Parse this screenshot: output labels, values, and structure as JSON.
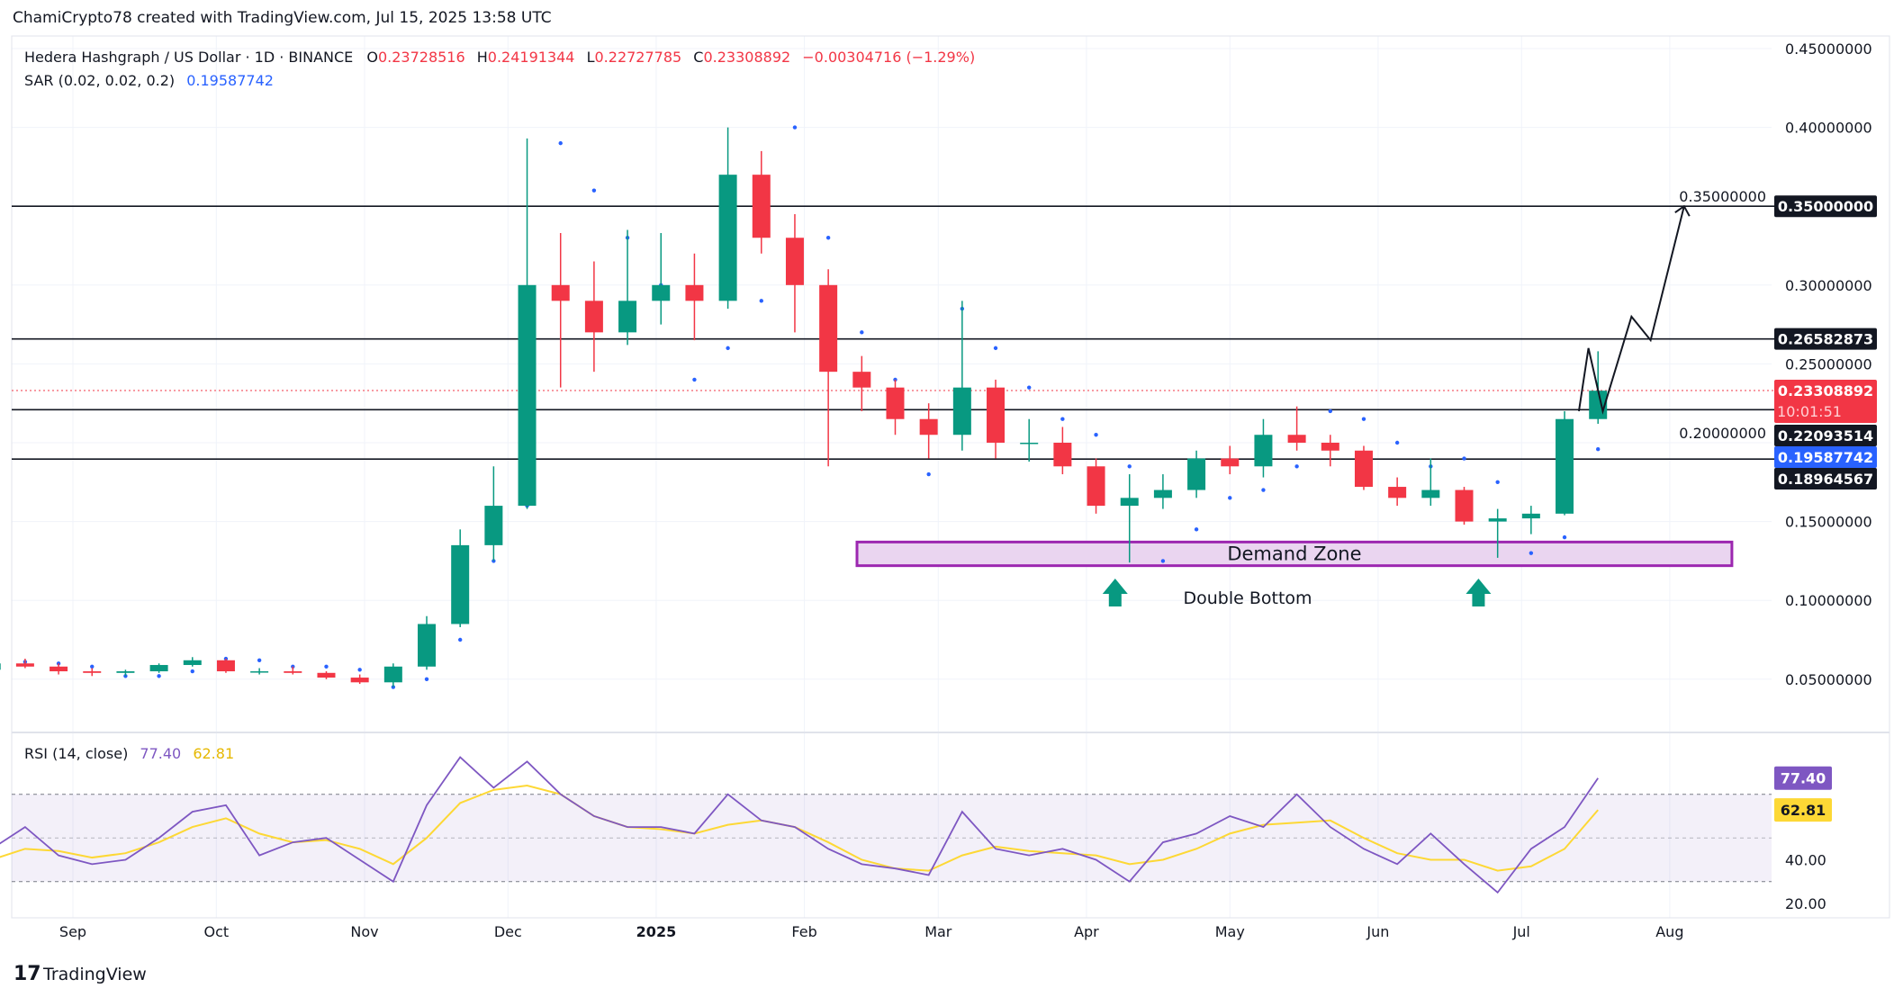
{
  "header": {
    "attribution": "ChamiCrypto78 created with TradingView.com, Jul 15, 2025 13:58 UTC"
  },
  "legend": {
    "symbol": "Hedera Hashgraph / US Dollar · 1D · BINANCE",
    "o_label": "O",
    "o": "0.23728516",
    "h_label": "H",
    "h": "0.24191344",
    "l_label": "L",
    "l": "0.22727785",
    "c_label": "C",
    "c": "0.23308892",
    "change": "−0.00304716 (−1.29%)",
    "sar_label": "SAR (0.02, 0.02, 0.2)",
    "sar_value": "0.19587742",
    "rsi_label": "RSI (14, close)",
    "rsi_value": "77.40",
    "rsi_ma_value": "62.81"
  },
  "colors": {
    "up": "#089981",
    "down": "#f23645",
    "sar": "#2962ff",
    "rsi": "#7e57c2",
    "rsi_ma": "#fdd835",
    "zone": "#9c27b0",
    "zone_fill": "#ead5f0"
  },
  "chart_data": {
    "type": "candlestick",
    "price_axis": {
      "ticks": [
        0.45,
        0.4,
        0.35,
        0.3,
        0.25,
        0.2,
        0.15,
        0.1,
        0.05
      ],
      "labels": [
        "0.45000000",
        "0.40000000",
        "0.35000000",
        "0.30000000",
        "0.25000000",
        "0.20000000",
        "0.15000000",
        "0.10000000",
        "0.05000000"
      ],
      "range": [
        0.0,
        0.45
      ]
    },
    "time_axis": [
      {
        "label": "Sep",
        "date": "2024-09-01"
      },
      {
        "label": "Oct",
        "date": "2024-10-01"
      },
      {
        "label": "Nov",
        "date": "2024-11-01"
      },
      {
        "label": "Dec",
        "date": "2024-12-01"
      },
      {
        "label": "2025",
        "date": "2025-01-01"
      },
      {
        "label": "Feb",
        "date": "2025-02-01"
      },
      {
        "label": "Mar",
        "date": "2025-03-01"
      },
      {
        "label": "Apr",
        "date": "2025-04-01"
      },
      {
        "label": "May",
        "date": "2025-05-01"
      },
      {
        "label": "Jun",
        "date": "2025-06-01"
      },
      {
        "label": "Jul",
        "date": "2025-07-01"
      },
      {
        "label": "Aug",
        "date": "2025-08-01"
      }
    ],
    "candles_columns": [
      "date",
      "open",
      "high",
      "low",
      "close"
    ],
    "candles": [
      [
        "2024-08-12",
        0.056,
        0.062,
        0.054,
        0.06
      ],
      [
        "2024-08-19",
        0.06,
        0.063,
        0.057,
        0.058
      ],
      [
        "2024-08-26",
        0.058,
        0.06,
        0.053,
        0.055
      ],
      [
        "2024-09-02",
        0.055,
        0.057,
        0.052,
        0.054
      ],
      [
        "2024-09-09",
        0.054,
        0.056,
        0.052,
        0.055
      ],
      [
        "2024-09-16",
        0.055,
        0.06,
        0.054,
        0.059
      ],
      [
        "2024-09-23",
        0.059,
        0.064,
        0.058,
        0.062
      ],
      [
        "2024-09-30",
        0.062,
        0.063,
        0.054,
        0.055
      ],
      [
        "2024-10-07",
        0.055,
        0.057,
        0.053,
        0.055
      ],
      [
        "2024-10-14",
        0.055,
        0.058,
        0.053,
        0.054
      ],
      [
        "2024-10-21",
        0.054,
        0.055,
        0.05,
        0.051
      ],
      [
        "2024-10-28",
        0.051,
        0.053,
        0.047,
        0.048
      ],
      [
        "2024-11-04",
        0.048,
        0.06,
        0.045,
        0.058
      ],
      [
        "2024-11-11",
        0.058,
        0.09,
        0.056,
        0.085
      ],
      [
        "2024-11-18",
        0.085,
        0.145,
        0.083,
        0.135
      ],
      [
        "2024-11-25",
        0.135,
        0.185,
        0.125,
        0.16
      ],
      [
        "2024-12-02",
        0.16,
        0.393,
        0.158,
        0.3
      ],
      [
        "2024-12-09",
        0.3,
        0.333,
        0.235,
        0.29
      ],
      [
        "2024-12-16",
        0.29,
        0.315,
        0.245,
        0.27
      ],
      [
        "2024-12-23",
        0.27,
        0.335,
        0.262,
        0.29
      ],
      [
        "2024-12-30",
        0.29,
        0.333,
        0.275,
        0.3
      ],
      [
        "2025-01-06",
        0.3,
        0.32,
        0.265,
        0.29
      ],
      [
        "2025-01-13",
        0.29,
        0.4,
        0.285,
        0.37
      ],
      [
        "2025-01-20",
        0.37,
        0.385,
        0.32,
        0.33
      ],
      [
        "2025-01-27",
        0.33,
        0.345,
        0.27,
        0.3
      ],
      [
        "2025-02-03",
        0.3,
        0.31,
        0.185,
        0.245
      ],
      [
        "2025-02-10",
        0.245,
        0.255,
        0.22,
        0.235
      ],
      [
        "2025-02-17",
        0.235,
        0.24,
        0.205,
        0.215
      ],
      [
        "2025-02-24",
        0.215,
        0.225,
        0.19,
        0.205
      ],
      [
        "2025-03-03",
        0.205,
        0.29,
        0.195,
        0.235
      ],
      [
        "2025-03-10",
        0.235,
        0.24,
        0.19,
        0.2
      ],
      [
        "2025-03-17",
        0.2,
        0.215,
        0.188,
        0.2
      ],
      [
        "2025-03-24",
        0.2,
        0.21,
        0.18,
        0.185
      ],
      [
        "2025-03-31",
        0.185,
        0.19,
        0.155,
        0.16
      ],
      [
        "2025-04-07",
        0.16,
        0.18,
        0.124,
        0.165
      ],
      [
        "2025-04-14",
        0.165,
        0.18,
        0.158,
        0.17
      ],
      [
        "2025-04-21",
        0.17,
        0.195,
        0.165,
        0.19
      ],
      [
        "2025-04-28",
        0.19,
        0.198,
        0.18,
        0.185
      ],
      [
        "2025-05-05",
        0.185,
        0.215,
        0.178,
        0.205
      ],
      [
        "2025-05-12",
        0.205,
        0.223,
        0.195,
        0.2
      ],
      [
        "2025-05-19",
        0.2,
        0.205,
        0.185,
        0.195
      ],
      [
        "2025-05-26",
        0.195,
        0.198,
        0.17,
        0.172
      ],
      [
        "2025-06-02",
        0.172,
        0.178,
        0.16,
        0.165
      ],
      [
        "2025-06-09",
        0.165,
        0.19,
        0.16,
        0.17
      ],
      [
        "2025-06-16",
        0.17,
        0.172,
        0.148,
        0.15
      ],
      [
        "2025-06-23",
        0.15,
        0.158,
        0.127,
        0.152
      ],
      [
        "2025-06-30",
        0.152,
        0.16,
        0.142,
        0.155
      ],
      [
        "2025-07-07",
        0.155,
        0.22,
        0.154,
        0.215
      ],
      [
        "2025-07-14",
        0.215,
        0.258,
        0.212,
        0.233
      ]
    ],
    "sar": [
      0.052,
      0.061,
      0.06,
      0.058,
      0.052,
      0.052,
      0.055,
      0.063,
      0.062,
      0.058,
      0.058,
      0.056,
      0.045,
      0.05,
      0.075,
      0.125,
      0.16,
      0.39,
      0.36,
      0.33,
      0.3,
      0.24,
      0.26,
      0.29,
      0.4,
      0.33,
      0.27,
      0.24,
      0.18,
      0.285,
      0.26,
      0.235,
      0.215,
      0.205,
      0.185,
      0.125,
      0.145,
      0.165,
      0.17,
      0.185,
      0.22,
      0.215,
      0.2,
      0.185,
      0.19,
      0.175,
      0.13,
      0.14,
      0.19587742
    ],
    "levels": [
      {
        "value": 0.35,
        "label": "0.35000000"
      },
      {
        "value": 0.26582873,
        "label": "0.26582873"
      },
      {
        "value": 0.22093514,
        "label": "0.22093514"
      },
      {
        "value": 0.18964567,
        "label": "0.18964567"
      }
    ],
    "last_price": {
      "value": 0.23308892,
      "label": "0.23308892",
      "countdown": "10:01:51"
    },
    "sar_last": {
      "value": 0.19587742,
      "label": "0.19587742"
    },
    "annotations": {
      "demand_zone": {
        "label": "Demand Zone",
        "low": 0.122,
        "high": 0.137,
        "from": "2025-02-12",
        "to": "2025-08-14"
      },
      "double_bottom": {
        "label": "Double Bottom",
        "arrows": [
          "2025-04-07",
          "2025-06-22"
        ]
      },
      "projection": [
        [
          "2025-07-13",
          0.22
        ],
        [
          "2025-07-15",
          0.26
        ],
        [
          "2025-07-18",
          0.22
        ],
        [
          "2025-07-24",
          0.28
        ],
        [
          "2025-07-28",
          0.265
        ],
        [
          "2025-08-04",
          0.35
        ]
      ]
    },
    "rsi": {
      "label": "RSI (14, close)",
      "ticks": [
        {
          "v": 40,
          "label": "40.00"
        },
        {
          "v": 20,
          "label": "20.00"
        }
      ],
      "bands": [
        70,
        50,
        30
      ],
      "values": [
        45,
        55,
        42,
        38,
        40,
        50,
        62,
        65,
        42,
        48,
        50,
        40,
        30,
        65,
        87,
        73,
        85,
        70,
        60,
        55,
        55,
        52,
        70,
        58,
        55,
        45,
        38,
        36,
        33,
        62,
        45,
        42,
        45,
        40,
        30,
        48,
        52,
        60,
        55,
        70,
        55,
        45,
        38,
        52,
        38,
        25,
        45,
        55,
        77.4
      ],
      "ma": [
        40,
        45,
        44,
        41,
        43,
        48,
        55,
        59,
        52,
        48,
        49,
        45,
        38,
        50,
        66,
        72,
        74,
        70,
        60,
        55,
        54,
        52,
        56,
        58,
        55,
        48,
        40,
        36,
        35,
        42,
        46,
        44,
        43,
        42,
        38,
        40,
        45,
        52,
        56,
        57,
        58,
        50,
        43,
        40,
        40,
        35,
        37,
        45,
        62.81
      ],
      "last_label": "77.40",
      "ma_last_label": "62.81"
    }
  },
  "footer": {
    "brand": "TradingView"
  }
}
